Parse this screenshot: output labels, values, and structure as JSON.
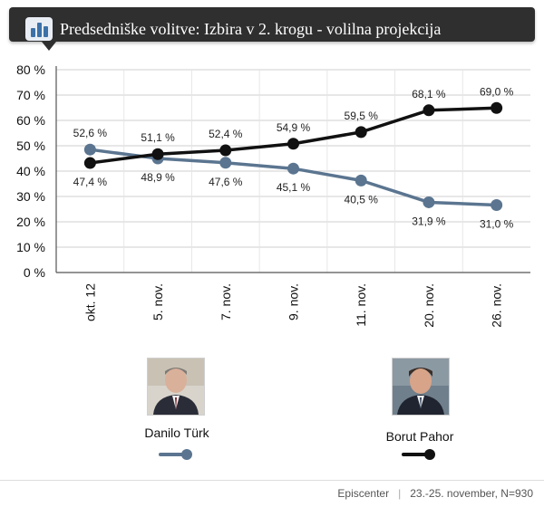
{
  "header": {
    "title": "Predsedniške volitve: Izbira v 2. krogu - volilna projekcija",
    "icon": "bar-chart-icon"
  },
  "chart_data": {
    "type": "line",
    "title": "",
    "xlabel": "",
    "ylabel": "",
    "categories": [
      "okt. 12",
      "5. nov.",
      "7. nov.",
      "9. nov.",
      "11. nov.",
      "20. nov.",
      "26. nov."
    ],
    "ylim": [
      0,
      80
    ],
    "yticks": [
      "0 %",
      "10 %",
      "20 %",
      "30 %",
      "40 %",
      "50 %",
      "60 %",
      "70 %",
      "80 %"
    ],
    "grid": true,
    "series": [
      {
        "name": "Danilo Türk",
        "color": "#5b7590",
        "values": [
          48.5,
          45.0,
          43.3,
          41.0,
          36.3,
          27.7,
          26.6
        ],
        "labels": [
          "52,6 %",
          "48,9 %",
          "47,6 %",
          "45,1 %",
          "40,5 %",
          "31,9 %",
          "31,0 %"
        ]
      },
      {
        "name": "Borut Pahor",
        "color": "#111111",
        "values": [
          43.2,
          46.7,
          48.2,
          50.8,
          55.4,
          64.0,
          64.9
        ],
        "labels": [
          "47,4 %",
          "51,1 %",
          "52,4 %",
          "54,9 %",
          "59,5 %",
          "68,1 %",
          "69,0 %"
        ]
      }
    ],
    "legend": "bottom"
  },
  "legend": {
    "turk": {
      "name": "Danilo Türk",
      "portrait": "portrait-photo-turk"
    },
    "pahor": {
      "name": "Borut Pahor",
      "portrait": "portrait-photo-pahor"
    }
  },
  "footer": {
    "source": "Episcenter",
    "note": "23.-25. november, N=930"
  }
}
